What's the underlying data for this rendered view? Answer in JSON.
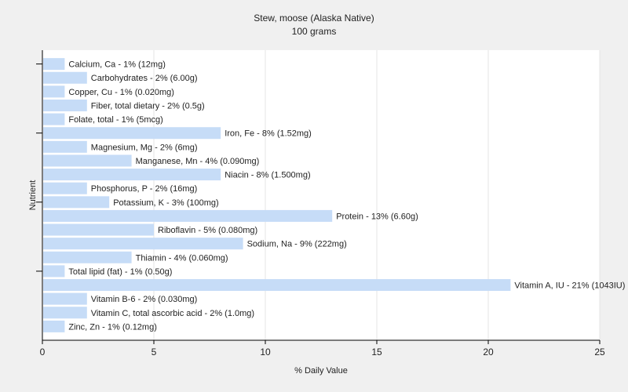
{
  "chart_data": {
    "type": "bar",
    "orientation": "horizontal",
    "title": "Stew, moose (Alaska Native)",
    "subtitle": "100 grams",
    "xlabel": "% Daily Value",
    "ylabel": "Nutrient",
    "xlim": [
      0,
      25
    ],
    "xticks": [
      0,
      5,
      10,
      15,
      20,
      25
    ],
    "grid": true,
    "bar_color": "#c6dcf7",
    "categories": [
      "Calcium, Ca",
      "Carbohydrates",
      "Copper, Cu",
      "Fiber, total dietary",
      "Folate, total",
      "Iron, Fe",
      "Magnesium, Mg",
      "Manganese, Mn",
      "Niacin",
      "Phosphorus, P",
      "Potassium, K",
      "Protein",
      "Riboflavin",
      "Sodium, Na",
      "Thiamin",
      "Total lipid (fat)",
      "Vitamin A, IU",
      "Vitamin B-6",
      "Vitamin C, total ascorbic acid",
      "Zinc, Zn"
    ],
    "values": [
      1,
      2,
      1,
      2,
      1,
      8,
      2,
      4,
      8,
      2,
      3,
      13,
      5,
      9,
      4,
      1,
      21,
      2,
      2,
      1
    ],
    "labels": [
      "Calcium, Ca - 1% (12mg)",
      "Carbohydrates - 2% (6.00g)",
      "Copper, Cu - 1% (0.020mg)",
      "Fiber, total dietary - 2% (0.5g)",
      "Folate, total - 1% (5mcg)",
      "Iron, Fe - 8% (1.52mg)",
      "Magnesium, Mg - 2% (6mg)",
      "Manganese, Mn - 4% (0.090mg)",
      "Niacin - 8% (1.500mg)",
      "Phosphorus, P - 2% (16mg)",
      "Potassium, K - 3% (100mg)",
      "Protein - 13% (6.60g)",
      "Riboflavin - 5% (0.080mg)",
      "Sodium, Na - 9% (222mg)",
      "Thiamin - 4% (0.060mg)",
      "Total lipid (fat) - 1% (0.50g)",
      "Vitamin A, IU - 21% (1043IU)",
      "Vitamin B-6 - 2% (0.030mg)",
      "Vitamin C, total ascorbic acid - 2% (1.0mg)",
      "Zinc, Zn - 1% (0.12mg)"
    ]
  }
}
